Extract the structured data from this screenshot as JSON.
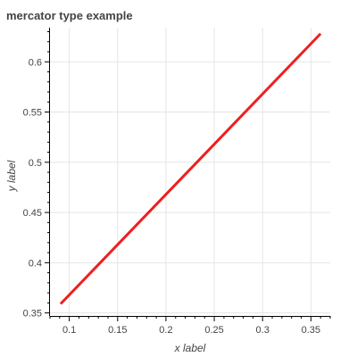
{
  "chart_data": {
    "type": "line",
    "title": "mercator type example",
    "xlabel": "x label",
    "ylabel": "y label",
    "xlim": [
      0.08,
      0.37
    ],
    "ylim": [
      0.347,
      0.634
    ],
    "x_ticks": [
      0.1,
      0.15,
      0.2,
      0.25,
      0.3,
      0.35
    ],
    "x_tick_labels": [
      "0.1",
      "0.15",
      "0.2",
      "0.25",
      "0.3",
      "0.35"
    ],
    "y_ticks": [
      0.35,
      0.4,
      0.45,
      0.5,
      0.55,
      0.6
    ],
    "y_tick_labels": [
      "0.35",
      "0.4",
      "0.45",
      "0.5",
      "0.55",
      "0.6"
    ],
    "grid": true,
    "series": [
      {
        "color": "#ee1f1f",
        "x": [
          0.091,
          0.36
        ],
        "y": [
          0.359,
          0.628
        ]
      }
    ]
  }
}
